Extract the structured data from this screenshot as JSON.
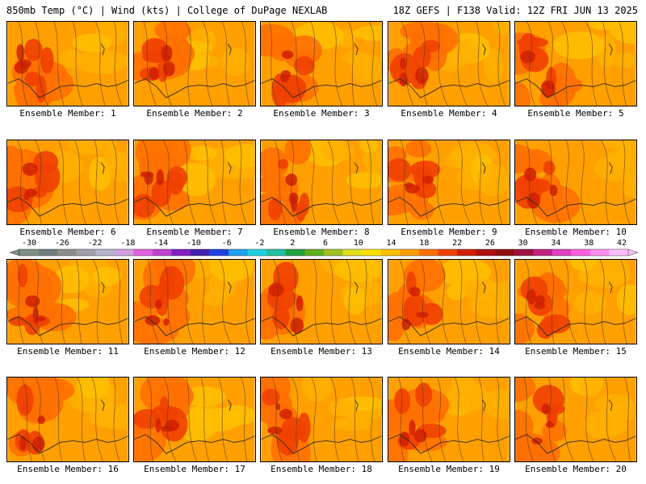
{
  "header": {
    "left": "850mb Temp (°C) | Wind (kts) | College of DuPage NEXLAB",
    "right": "18Z GEFS | F138 Valid: 12Z FRI JUN 13 2025"
  },
  "panels": [
    {
      "label": "Ensemble Member: 1"
    },
    {
      "label": "Ensemble Member: 2"
    },
    {
      "label": "Ensemble Member: 3"
    },
    {
      "label": "Ensemble Member: 4"
    },
    {
      "label": "Ensemble Member: 5"
    },
    {
      "label": "Ensemble Member: 6"
    },
    {
      "label": "Ensemble Member: 7"
    },
    {
      "label": "Ensemble Member: 8"
    },
    {
      "label": "Ensemble Member: 9"
    },
    {
      "label": "Ensemble Member: 10"
    },
    {
      "label": "Ensemble Member: 11"
    },
    {
      "label": "Ensemble Member: 12"
    },
    {
      "label": "Ensemble Member: 13"
    },
    {
      "label": "Ensemble Member: 14"
    },
    {
      "label": "Ensemble Member: 15"
    },
    {
      "label": "Ensemble Member: 16"
    },
    {
      "label": "Ensemble Member: 17"
    },
    {
      "label": "Ensemble Member: 18"
    },
    {
      "label": "Ensemble Member: 19"
    },
    {
      "label": "Ensemble Member: 20"
    }
  ],
  "colorbar": {
    "ticks": [
      "-30",
      "-26",
      "-22",
      "-18",
      "-14",
      "-10",
      "-6",
      "-2",
      "2",
      "6",
      "10",
      "14",
      "18",
      "22",
      "26",
      "30",
      "34",
      "38",
      "42"
    ],
    "colors": [
      "#7f8f82",
      "#6f7f7f",
      "#8c8c8c",
      "#a0a0a8",
      "#b4b4cc",
      "#d0a0e0",
      "#e060e0",
      "#c040d0",
      "#8020c0",
      "#4020b0",
      "#2040e0",
      "#20a0f0",
      "#20d0e0",
      "#20c0a0",
      "#20a040",
      "#60b020",
      "#a0c020",
      "#e0e020",
      "#ffe000",
      "#ffc000",
      "#ffa000",
      "#ff7000",
      "#f04000",
      "#d02000",
      "#b01010",
      "#901010",
      "#a01040",
      "#c02080",
      "#e040c0",
      "#ff60e0",
      "#ff90f0",
      "#ffc0ff"
    ]
  }
}
